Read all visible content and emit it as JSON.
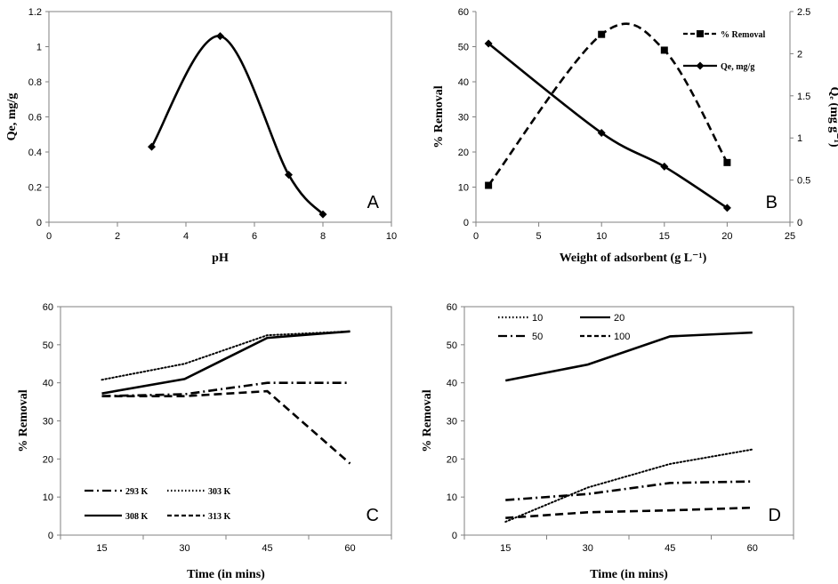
{
  "chart_data": [
    {
      "id": "A",
      "type": "line",
      "panel_label": "A",
      "xlabel": "pH",
      "ylabel": "Qe, mg/g",
      "xlim": [
        0,
        10
      ],
      "xticks": [
        0,
        2,
        4,
        6,
        8,
        10
      ],
      "ylim": [
        0,
        1.2
      ],
      "yticks": [
        0,
        0.2,
        0.4,
        0.6,
        0.8,
        1,
        1.2
      ],
      "grid": false,
      "series": [
        {
          "name": "Qe",
          "style": "solid",
          "marker": "diamond",
          "smooth": true,
          "x": [
            3,
            5,
            7,
            8
          ],
          "y": [
            0.43,
            1.06,
            0.27,
            0.045
          ]
        }
      ]
    },
    {
      "id": "B",
      "type": "line",
      "panel_label": "B",
      "xlabel": "Weight of adsorbent (g L⁻¹)",
      "ylabel": "% Removal",
      "ylabel_right": "Qₑ (mg g⁻¹)",
      "xlim": [
        0,
        25
      ],
      "xticks": [
        0,
        5,
        10,
        15,
        20,
        25
      ],
      "ylim": [
        0,
        60
      ],
      "yticks": [
        0,
        10,
        20,
        30,
        40,
        50,
        60
      ],
      "ylim_right": [
        0,
        2.5
      ],
      "yticks_right": [
        0,
        0.5,
        1,
        1.5,
        2,
        2.5
      ],
      "legend": "top-right",
      "grid": false,
      "series": [
        {
          "name": "% Removal",
          "axis": "left",
          "style": "dashed",
          "marker": "square",
          "smooth": true,
          "x": [
            1,
            10,
            15,
            20
          ],
          "y": [
            10.5,
            53.5,
            49,
            17
          ]
        },
        {
          "name": "Qe, mg/g",
          "axis": "right",
          "style": "solid",
          "marker": "diamond",
          "smooth": true,
          "x": [
            1,
            10,
            15,
            20
          ],
          "y": [
            2.12,
            1.06,
            0.66,
            0.17
          ]
        }
      ]
    },
    {
      "id": "C",
      "type": "line",
      "panel_label": "C",
      "xlabel": "Time (in mins)",
      "ylabel": "% Removal",
      "categories": [
        "15",
        "30",
        "45",
        "60"
      ],
      "ylim": [
        0,
        60
      ],
      "yticks": [
        0,
        10,
        20,
        30,
        40,
        50,
        60
      ],
      "legend": "bottom-left",
      "grid": false,
      "series": [
        {
          "name": "293 K",
          "style": "dashdot",
          "values": [
            36.5,
            37,
            40,
            40
          ]
        },
        {
          "name": "303 K",
          "style": "dotted",
          "values": [
            40.8,
            45,
            52.5,
            53.5
          ]
        },
        {
          "name": "308 K",
          "style": "solid",
          "values": [
            37.2,
            41,
            51.8,
            53.5
          ]
        },
        {
          "name": "313 K",
          "style": "dashed",
          "values": [
            36.5,
            36.5,
            37.8,
            18.8
          ]
        }
      ]
    },
    {
      "id": "D",
      "type": "line",
      "panel_label": "D",
      "xlabel": "Time (in mins)",
      "ylabel": "% Removal",
      "categories": [
        "15",
        "30",
        "45",
        "60"
      ],
      "ylim": [
        0,
        60
      ],
      "yticks": [
        0,
        10,
        20,
        30,
        40,
        50,
        60
      ],
      "legend": "top-left",
      "grid": false,
      "series": [
        {
          "name": "10",
          "style": "dotted",
          "values": [
            3.5,
            12.5,
            18.7,
            22.5
          ]
        },
        {
          "name": "20",
          "style": "solid",
          "values": [
            40.6,
            44.8,
            52.2,
            53.2
          ]
        },
        {
          "name": "50",
          "style": "dashdot",
          "values": [
            9.2,
            10.8,
            13.7,
            14.1
          ]
        },
        {
          "name": "100",
          "style": "dashed",
          "values": [
            4.5,
            6,
            6.5,
            7.2
          ]
        }
      ]
    }
  ]
}
